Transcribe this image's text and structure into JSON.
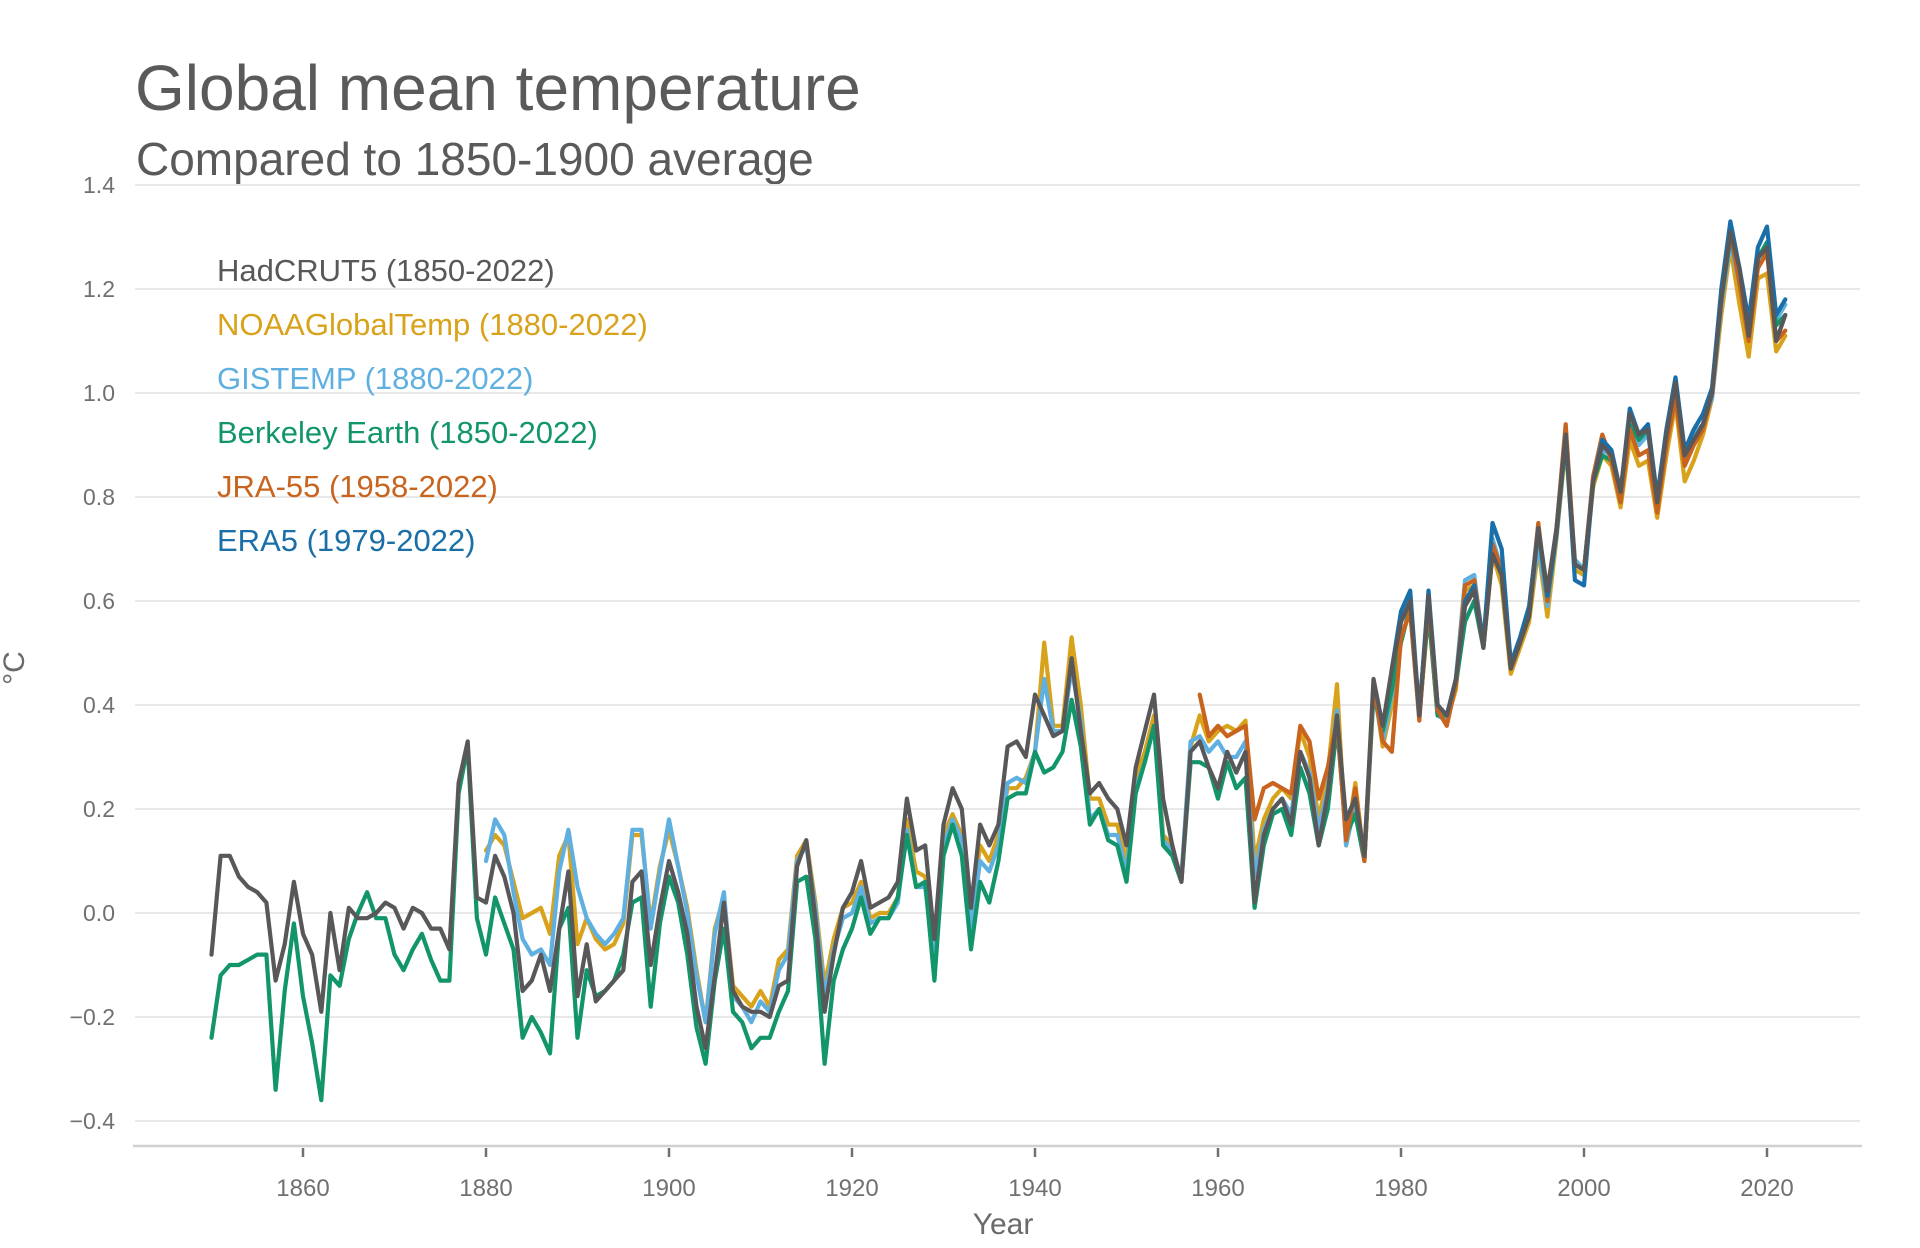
{
  "chart_data": {
    "type": "line",
    "title": "Global mean temperature",
    "subtitle": "Compared to 1850-1900 average",
    "xlabel": "Year",
    "ylabel": "°C",
    "xlim": [
      1843,
      2032
    ],
    "ylim": [
      -0.45,
      1.45
    ],
    "yticks": [
      -0.4,
      -0.2,
      0.0,
      0.2,
      0.4,
      0.6,
      0.8,
      1.0,
      1.2,
      1.4
    ],
    "ytick_labels": [
      "−0.4",
      "−0.2",
      "0.0",
      "0.2",
      "0.4",
      "0.6",
      "0.8",
      "1.0",
      "1.2",
      "1.4"
    ],
    "xticks": [
      1860,
      1880,
      1900,
      1920,
      1940,
      1960,
      1980,
      2000,
      2020
    ],
    "xtick_labels": [
      "1860",
      "1880",
      "1900",
      "1920",
      "1940",
      "1960",
      "1980",
      "2000",
      "2020"
    ],
    "grid": true,
    "legend_position": "top-left",
    "series": [
      {
        "name": "NOAAGlobalTemp (1880-2022)",
        "color": "#d9a21b",
        "start_year": 1880,
        "values": [
          0.12,
          0.15,
          0.13,
          0.06,
          -0.01,
          0.0,
          0.01,
          -0.04,
          0.11,
          0.15,
          -0.06,
          -0.01,
          -0.05,
          -0.07,
          -0.06,
          -0.02,
          0.15,
          0.15,
          -0.02,
          0.09,
          0.16,
          0.09,
          0.01,
          -0.11,
          -0.21,
          -0.03,
          0.03,
          -0.14,
          -0.16,
          -0.18,
          -0.15,
          -0.18,
          -0.09,
          -0.07,
          0.11,
          0.14,
          0.02,
          -0.14,
          -0.05,
          0.01,
          0.02,
          0.06,
          -0.01,
          0.0,
          0.0,
          0.03,
          0.18,
          0.08,
          0.07,
          -0.07,
          0.15,
          0.19,
          0.15,
          -0.01,
          0.13,
          0.1,
          0.15,
          0.24,
          0.24,
          0.26,
          0.31,
          0.52,
          0.36,
          0.36,
          0.53,
          0.4,
          0.22,
          0.22,
          0.17,
          0.17,
          0.1,
          0.26,
          0.31,
          0.38,
          0.15,
          0.13,
          0.06,
          0.32,
          0.38,
          0.33,
          0.35,
          0.36,
          0.35,
          0.37,
          0.1,
          0.18,
          0.22,
          0.24,
          0.22,
          0.35,
          0.3,
          0.18,
          0.27,
          0.44,
          0.13,
          0.25,
          0.1,
          0.44,
          0.32,
          0.4,
          0.53,
          0.58,
          0.38,
          0.58,
          0.38,
          0.37,
          0.43,
          0.62,
          0.63,
          0.51,
          0.69,
          0.63,
          0.46,
          0.51,
          0.56,
          0.7,
          0.57,
          0.72,
          0.9,
          0.66,
          0.65,
          0.82,
          0.88,
          0.86,
          0.78,
          0.91,
          0.86,
          0.87,
          0.76,
          0.88,
          0.98,
          0.83,
          0.87,
          0.92,
          0.99,
          1.15,
          1.28,
          1.17,
          1.07,
          1.22,
          1.23,
          1.08,
          1.11
        ]
      },
      {
        "name": "GISTEMP (1880-2022)",
        "color": "#5fb0e0",
        "start_year": 1880,
        "values": [
          0.1,
          0.18,
          0.15,
          0.04,
          -0.05,
          -0.08,
          -0.07,
          -0.1,
          0.08,
          0.16,
          0.05,
          -0.01,
          -0.04,
          -0.06,
          -0.04,
          -0.01,
          0.16,
          0.16,
          -0.03,
          0.08,
          0.18,
          0.09,
          0.0,
          -0.12,
          -0.21,
          -0.04,
          0.04,
          -0.16,
          -0.18,
          -0.21,
          -0.17,
          -0.19,
          -0.11,
          -0.08,
          0.1,
          0.13,
          0.01,
          -0.16,
          -0.07,
          -0.01,
          0.0,
          0.05,
          -0.02,
          -0.01,
          -0.01,
          0.02,
          0.16,
          0.05,
          0.05,
          -0.09,
          0.13,
          0.18,
          0.14,
          -0.03,
          0.1,
          0.08,
          0.13,
          0.25,
          0.26,
          0.25,
          0.31,
          0.45,
          0.35,
          0.35,
          0.47,
          0.37,
          0.18,
          0.2,
          0.15,
          0.15,
          0.08,
          0.24,
          0.29,
          0.36,
          0.14,
          0.12,
          0.07,
          0.33,
          0.34,
          0.31,
          0.33,
          0.3,
          0.3,
          0.33,
          0.07,
          0.16,
          0.2,
          0.22,
          0.19,
          0.31,
          0.27,
          0.16,
          0.24,
          0.39,
          0.13,
          0.21,
          0.12,
          0.43,
          0.33,
          0.42,
          0.56,
          0.6,
          0.39,
          0.6,
          0.38,
          0.37,
          0.45,
          0.64,
          0.65,
          0.51,
          0.72,
          0.66,
          0.48,
          0.52,
          0.58,
          0.71,
          0.59,
          0.73,
          0.91,
          0.68,
          0.66,
          0.84,
          0.89,
          0.88,
          0.8,
          0.93,
          0.9,
          0.92,
          0.8,
          0.91,
          1.01,
          0.88,
          0.92,
          0.94,
          0.99,
          1.17,
          1.29,
          1.21,
          1.14,
          1.25,
          1.28,
          1.14,
          1.17
        ]
      },
      {
        "name": "Berkeley Earth (1850-2022)",
        "color": "#12956b",
        "start_year": 1850,
        "values": [
          -0.24,
          -0.12,
          -0.1,
          -0.1,
          -0.09,
          -0.08,
          -0.08,
          -0.34,
          -0.15,
          -0.02,
          -0.16,
          -0.25,
          -0.36,
          -0.12,
          -0.14,
          -0.05,
          0.0,
          0.04,
          -0.01,
          -0.01,
          -0.08,
          -0.11,
          -0.07,
          -0.04,
          -0.09,
          -0.13,
          -0.13,
          0.23,
          0.32,
          -0.01,
          -0.08,
          0.03,
          -0.02,
          -0.07,
          -0.24,
          -0.2,
          -0.23,
          -0.27,
          -0.03,
          0.01,
          -0.24,
          -0.11,
          -0.16,
          -0.15,
          -0.13,
          -0.08,
          0.02,
          0.03,
          -0.18,
          -0.02,
          0.07,
          0.02,
          -0.08,
          -0.22,
          -0.29,
          -0.13,
          -0.03,
          -0.19,
          -0.21,
          -0.26,
          -0.24,
          -0.24,
          -0.19,
          -0.15,
          0.06,
          0.07,
          -0.05,
          -0.29,
          -0.13,
          -0.07,
          -0.03,
          0.03,
          -0.04,
          -0.01,
          -0.01,
          0.03,
          0.15,
          0.05,
          0.06,
          -0.13,
          0.11,
          0.17,
          0.11,
          -0.07,
          0.06,
          0.02,
          0.1,
          0.22,
          0.23,
          0.23,
          0.31,
          0.27,
          0.28,
          0.31,
          0.41,
          0.32,
          0.17,
          0.2,
          0.14,
          0.13,
          0.06,
          0.23,
          0.29,
          0.36,
          0.13,
          0.11,
          0.06,
          0.29,
          0.29,
          0.28,
          0.22,
          0.29,
          0.24,
          0.26,
          0.01,
          0.13,
          0.19,
          0.2,
          0.15,
          0.28,
          0.23,
          0.13,
          0.2,
          0.36,
          0.15,
          0.19,
          0.1,
          0.42,
          0.35,
          0.43,
          0.52,
          0.59,
          0.38,
          0.58,
          0.38,
          0.38,
          0.44,
          0.56,
          0.6,
          0.51,
          0.7,
          0.65,
          0.47,
          0.52,
          0.58,
          0.74,
          0.6,
          0.73,
          0.91,
          0.67,
          0.66,
          0.83,
          0.88,
          0.87,
          0.79,
          0.94,
          0.91,
          0.93,
          0.79,
          0.91,
          1.02,
          0.88,
          0.91,
          0.94,
          1.01,
          1.18,
          1.3,
          1.22,
          1.13,
          1.26,
          1.29,
          1.13,
          1.15
        ]
      },
      {
        "name": "JRA-55 (1958-2022)",
        "color": "#c8641e",
        "start_year": 1958,
        "values": [
          0.42,
          0.34,
          0.36,
          0.34,
          0.35,
          0.36,
          0.18,
          0.24,
          0.25,
          0.24,
          0.23,
          0.36,
          0.33,
          0.22,
          0.28,
          0.37,
          0.14,
          0.24,
          0.1,
          0.44,
          0.33,
          0.31,
          0.53,
          0.58,
          0.37,
          0.6,
          0.39,
          0.36,
          0.44,
          0.63,
          0.64,
          0.52,
          0.71,
          0.66,
          0.47,
          0.52,
          0.58,
          0.75,
          0.6,
          0.74,
          0.94,
          0.67,
          0.66,
          0.84,
          0.92,
          0.87,
          0.79,
          0.93,
          0.88,
          0.89,
          0.77,
          0.9,
          0.99,
          0.86,
          0.9,
          0.93,
          1.0,
          1.18,
          1.31,
          1.21,
          1.1,
          1.24,
          1.27,
          1.1,
          1.12
        ]
      },
      {
        "name": "ERA5 (1979-2022)",
        "color": "#1a6fa8",
        "start_year": 1979,
        "values": [
          0.47,
          0.58,
          0.62,
          0.38,
          0.62,
          0.4,
          0.38,
          0.45,
          0.6,
          0.63,
          0.52,
          0.75,
          0.7,
          0.48,
          0.53,
          0.59,
          0.74,
          0.61,
          0.73,
          0.92,
          0.64,
          0.63,
          0.83,
          0.91,
          0.89,
          0.81,
          0.97,
          0.92,
          0.94,
          0.8,
          0.93,
          1.03,
          0.89,
          0.93,
          0.96,
          1.01,
          1.2,
          1.33,
          1.24,
          1.14,
          1.28,
          1.32,
          1.15,
          1.18
        ]
      },
      {
        "name": "HadCRUT5 (1850-2022)",
        "color": "#58585a",
        "start_year": 1850,
        "values": [
          -0.08,
          0.11,
          0.11,
          0.07,
          0.05,
          0.04,
          0.02,
          -0.13,
          -0.06,
          0.06,
          -0.04,
          -0.08,
          -0.19,
          0.0,
          -0.11,
          0.01,
          -0.01,
          -0.01,
          0.0,
          0.02,
          0.01,
          -0.03,
          0.01,
          0.0,
          -0.03,
          -0.03,
          -0.07,
          0.25,
          0.33,
          0.03,
          0.02,
          0.11,
          0.07,
          0.0,
          -0.15,
          -0.13,
          -0.08,
          -0.15,
          -0.03,
          0.08,
          -0.16,
          -0.06,
          -0.17,
          -0.15,
          -0.13,
          -0.11,
          0.06,
          0.08,
          -0.1,
          0.01,
          0.1,
          0.04,
          -0.04,
          -0.18,
          -0.26,
          -0.12,
          0.02,
          -0.15,
          -0.18,
          -0.19,
          -0.19,
          -0.2,
          -0.14,
          -0.13,
          0.09,
          0.14,
          -0.01,
          -0.19,
          -0.08,
          0.01,
          0.04,
          0.1,
          0.01,
          0.02,
          0.03,
          0.06,
          0.22,
          0.12,
          0.13,
          -0.05,
          0.17,
          0.24,
          0.2,
          0.01,
          0.17,
          0.13,
          0.17,
          0.32,
          0.33,
          0.3,
          0.42,
          0.38,
          0.34,
          0.35,
          0.49,
          0.35,
          0.23,
          0.25,
          0.22,
          0.2,
          0.13,
          0.28,
          0.35,
          0.42,
          0.22,
          0.13,
          0.06,
          0.31,
          0.33,
          0.28,
          0.24,
          0.31,
          0.27,
          0.31,
          0.02,
          0.15,
          0.2,
          0.22,
          0.17,
          0.31,
          0.26,
          0.13,
          0.23,
          0.38,
          0.18,
          0.22,
          0.11,
          0.45,
          0.36,
          0.47,
          0.56,
          0.6,
          0.38,
          0.61,
          0.4,
          0.38,
          0.45,
          0.59,
          0.62,
          0.51,
          0.69,
          0.65,
          0.47,
          0.52,
          0.57,
          0.74,
          0.62,
          0.74,
          0.92,
          0.67,
          0.66,
          0.83,
          0.9,
          0.88,
          0.81,
          0.96,
          0.92,
          0.93,
          0.79,
          0.92,
          1.02,
          0.88,
          0.91,
          0.94,
          1.0,
          1.18,
          1.31,
          1.24,
          1.11,
          1.26,
          1.28,
          1.1,
          1.15
        ]
      }
    ]
  }
}
